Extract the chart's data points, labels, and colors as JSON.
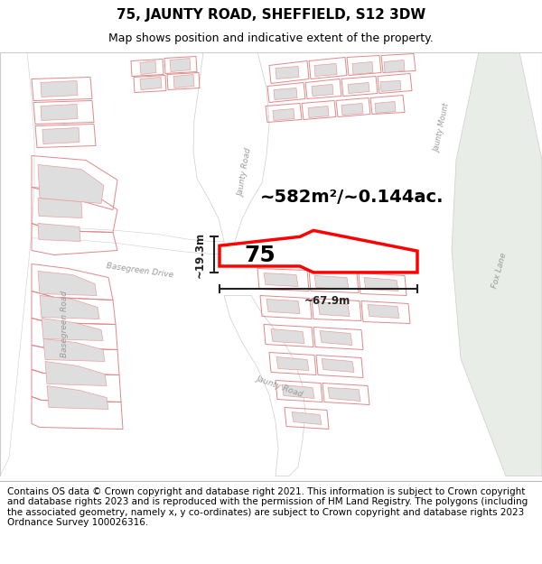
{
  "title": "75, JAUNTY ROAD, SHEFFIELD, S12 3DW",
  "subtitle": "Map shows position and indicative extent of the property.",
  "footer": "Contains OS data © Crown copyright and database right 2021. This information is subject to Crown copyright and database rights 2023 and is reproduced with the permission of HM Land Registry. The polygons (including the associated geometry, namely x, y co-ordinates) are subject to Crown copyright and database rights 2023 Ordnance Survey 100026316.",
  "area_text": "~582m²/~0.144ac.",
  "width_text": "~67.9m",
  "height_text": "~19.3m",
  "number_text": "75",
  "title_fontsize": 11,
  "subtitle_fontsize": 9,
  "footer_fontsize": 7.5,
  "map_bg": "#f7f6f4",
  "building_fill": "#dedede",
  "building_edge_light": "#e8a0a0",
  "plot_outline_red": "#ff0000",
  "road_label_color": "#999999",
  "dim_color": "#222222"
}
